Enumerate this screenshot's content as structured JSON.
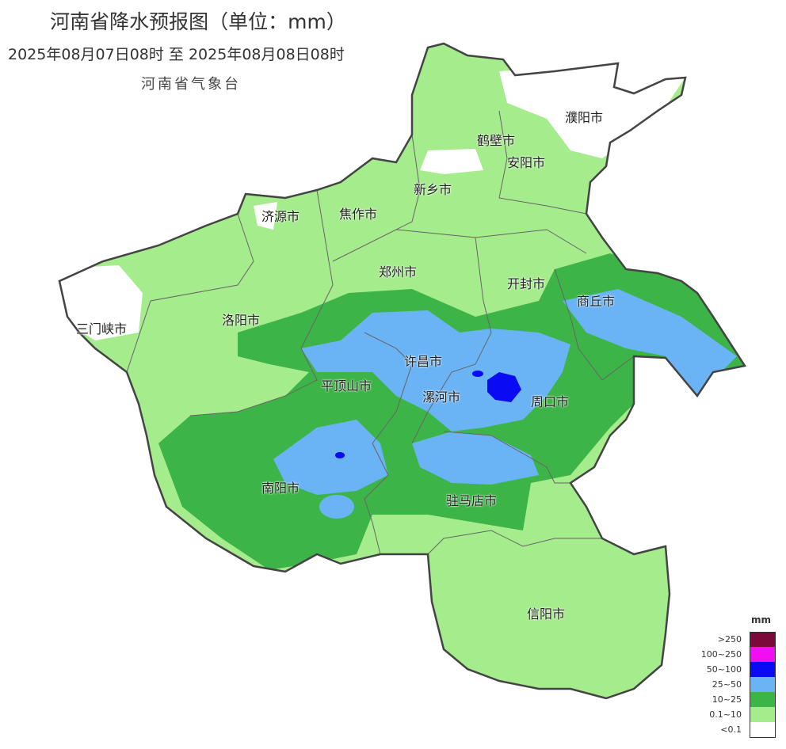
{
  "header": {
    "title": "河南省降水预报图（单位：mm）",
    "period": "2025年08月07日08时  至  2025年08月08日08时",
    "agency": "河南省气象台"
  },
  "cities": [
    "濮阳市",
    "鹤壁市",
    "安阳市",
    "新乡市",
    "济源市",
    "焦作市",
    "郑州市",
    "开封市",
    "商丘市",
    "三门峡市",
    "洛阳市",
    "许昌市",
    "平顶山市",
    "漯河市",
    "周口市",
    "南阳市",
    "驻马店市",
    "信阳市"
  ],
  "legend": {
    "unit": "mm",
    "items": [
      {
        "label": ">250",
        "color": "#7a0a3a"
      },
      {
        "label": "100~250",
        "color": "#f00ff0"
      },
      {
        "label": "50~100",
        "color": "#0a0af5"
      },
      {
        "label": "25~50",
        "color": "#6ab4f5"
      },
      {
        "label": "10~25",
        "color": "#3db447"
      },
      {
        "label": "0.1~10",
        "color": "#a5ec8d"
      },
      {
        "label": "<0.1",
        "color": "#ffffff"
      }
    ]
  }
}
